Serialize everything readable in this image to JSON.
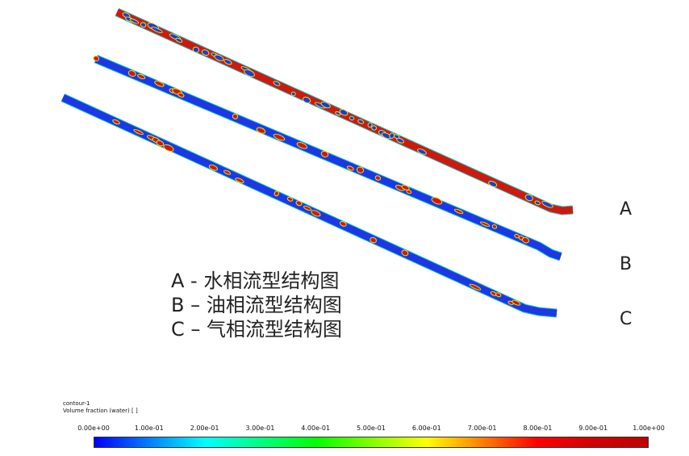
{
  "pipe_labels": [
    "A",
    "B",
    "C"
  ],
  "captions": [
    "A - 水相流型结构图",
    "B – 油相流型结构图",
    "C – 气相流型结构图"
  ],
  "legend": {
    "name": "contour-1",
    "variable": "Volume fraction (water) [ ]",
    "ticks": [
      "0.00e+00",
      "1.00e-01",
      "2.00e-01",
      "3.00e-01",
      "4.00e-01",
      "5.00e-01",
      "6.00e-01",
      "7.00e-01",
      "8.00e-01",
      "9.00e-01",
      "1.00e+00"
    ],
    "colormap": [
      "#0000ff",
      "#0080ff",
      "#00ffff",
      "#00ff80",
      "#00ff00",
      "#80ff00",
      "#ffff00",
      "#ff8000",
      "#ff0000",
      "#d40000",
      "#c00000"
    ]
  },
  "pipes": [
    {
      "id": "A",
      "base_color": "#cc1a10",
      "blob_color": "#1e3ae0",
      "blob_density": 0.35
    },
    {
      "id": "B",
      "base_color": "#1c38e6",
      "blob_color": "#cc1a10",
      "blob_density": 0.22
    },
    {
      "id": "C",
      "base_color": "#1c38e6",
      "blob_color": "#cc1a10",
      "blob_density": 0.18
    }
  ]
}
